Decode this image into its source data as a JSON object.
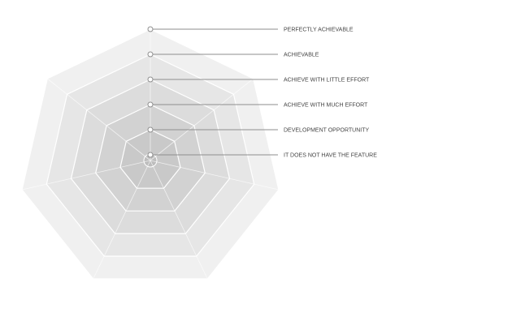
{
  "diagram": {
    "levels": [
      {
        "label": "PERFECTLY ACHIEVABLE",
        "fill": "#f0f0f0"
      },
      {
        "label": "ACHIEVABLE",
        "fill": "#e6e6e6"
      },
      {
        "label": "ACHIEVE WITH LITTLE EFFORT",
        "fill": "#dcdcdc"
      },
      {
        "label": "ACHIEVE WITH MUCH EFFORT",
        "fill": "#d2d2d2"
      },
      {
        "label": "DEVELOPMENT OPPORTUNITY",
        "fill": "#c9c9c9"
      },
      {
        "label": "IT DOES NOT HAVE THE FEATURE",
        "fill": "#c2c2c2"
      }
    ],
    "sides": 7,
    "line_color": "#8e8e8e",
    "label_color": "#444444"
  }
}
